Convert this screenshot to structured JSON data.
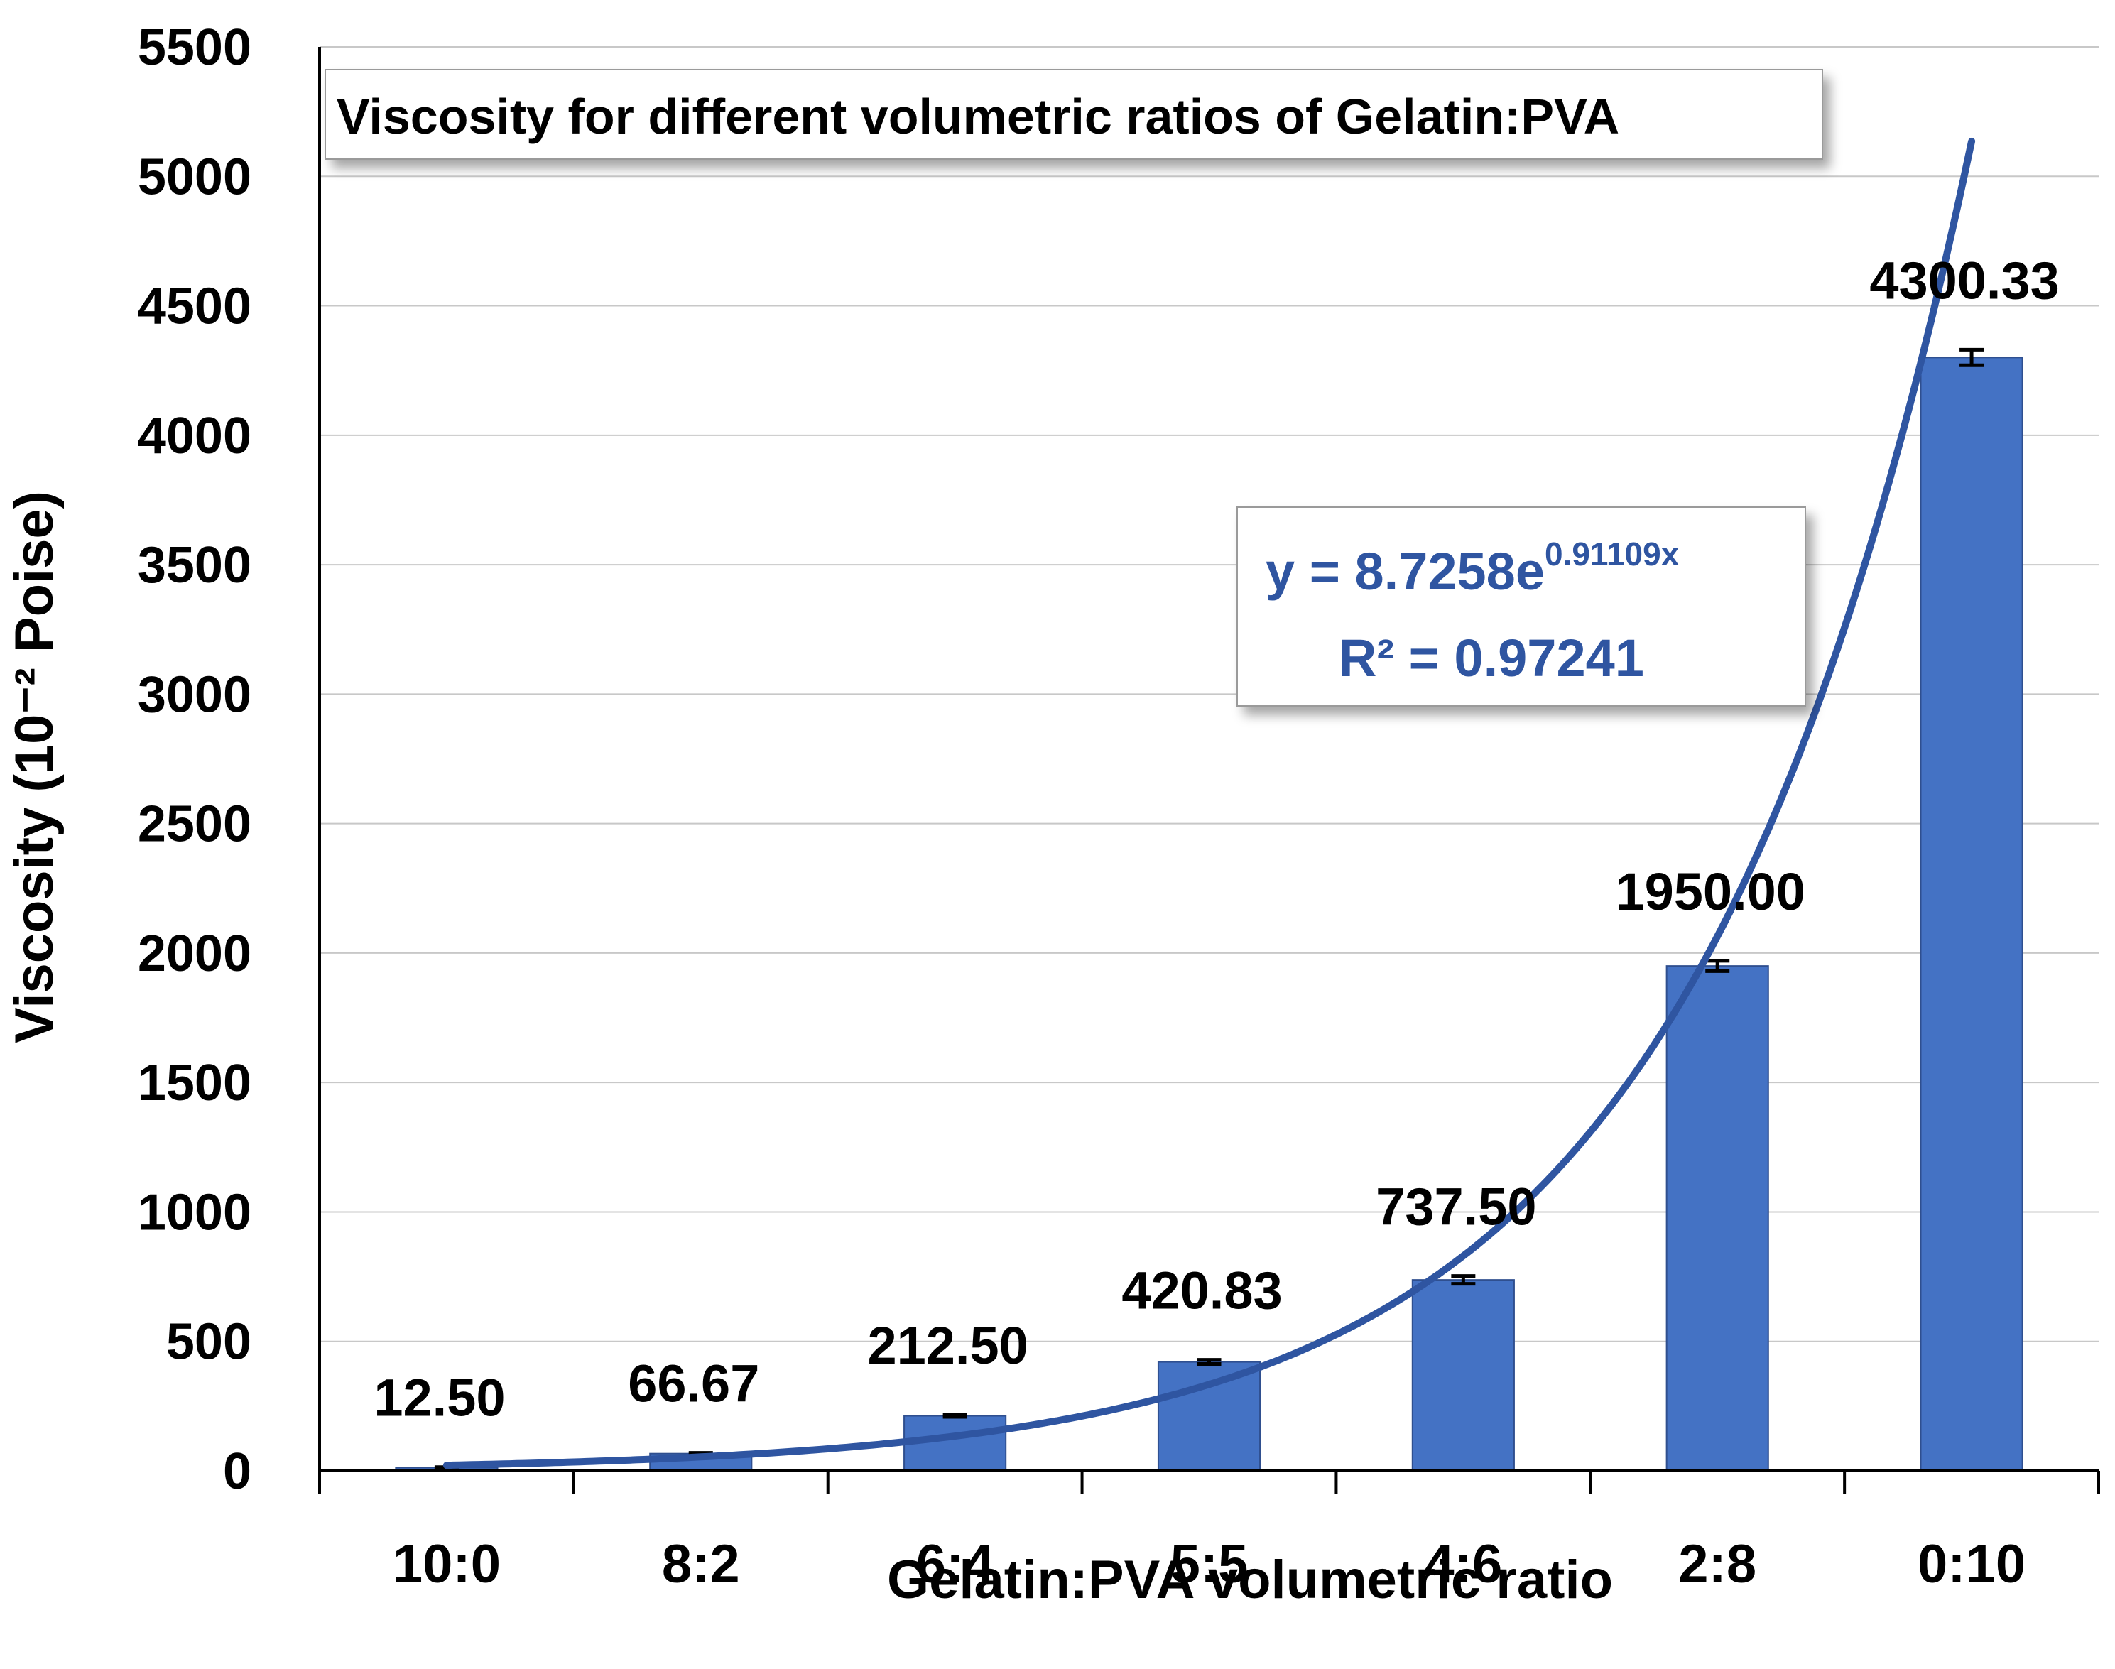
{
  "chart_data": {
    "type": "bar",
    "title": "Viscosity for different volumetric ratios of Gelatin:PVA",
    "xlabel": "Gelatin:PVA volumetric ratio",
    "ylabel": "Viscosity (10⁻² Poise)",
    "ylim": [
      0,
      5500
    ],
    "ytick_step": 500,
    "grid": true,
    "categories": [
      "10:0",
      "8:2",
      "6:4",
      "5:5",
      "4:6",
      "2:8",
      "0:10"
    ],
    "values": [
      12.5,
      66.67,
      212.5,
      420.83,
      737.5,
      1950.0,
      4300.33
    ],
    "data_labels": [
      "12.50",
      "66.67",
      "212.50",
      "420.83",
      "737.50",
      "1950.00",
      "4300.33"
    ],
    "error_bars": [
      2,
      3,
      4,
      8,
      15,
      20,
      30
    ],
    "trendline": {
      "type": "exponential",
      "a": 8.7258,
      "b": 0.91109,
      "x_range": [
        1,
        7.0
      ],
      "equation_main": "y = 8.7258e",
      "equation_exp": "0.91109x",
      "r2_label": "R² = 0.97241"
    },
    "colors": {
      "bar": "#4472C4",
      "bar_edge": "#2F4F8F",
      "trendline": "#2F55A1",
      "grid": "#C8C8C8"
    }
  }
}
